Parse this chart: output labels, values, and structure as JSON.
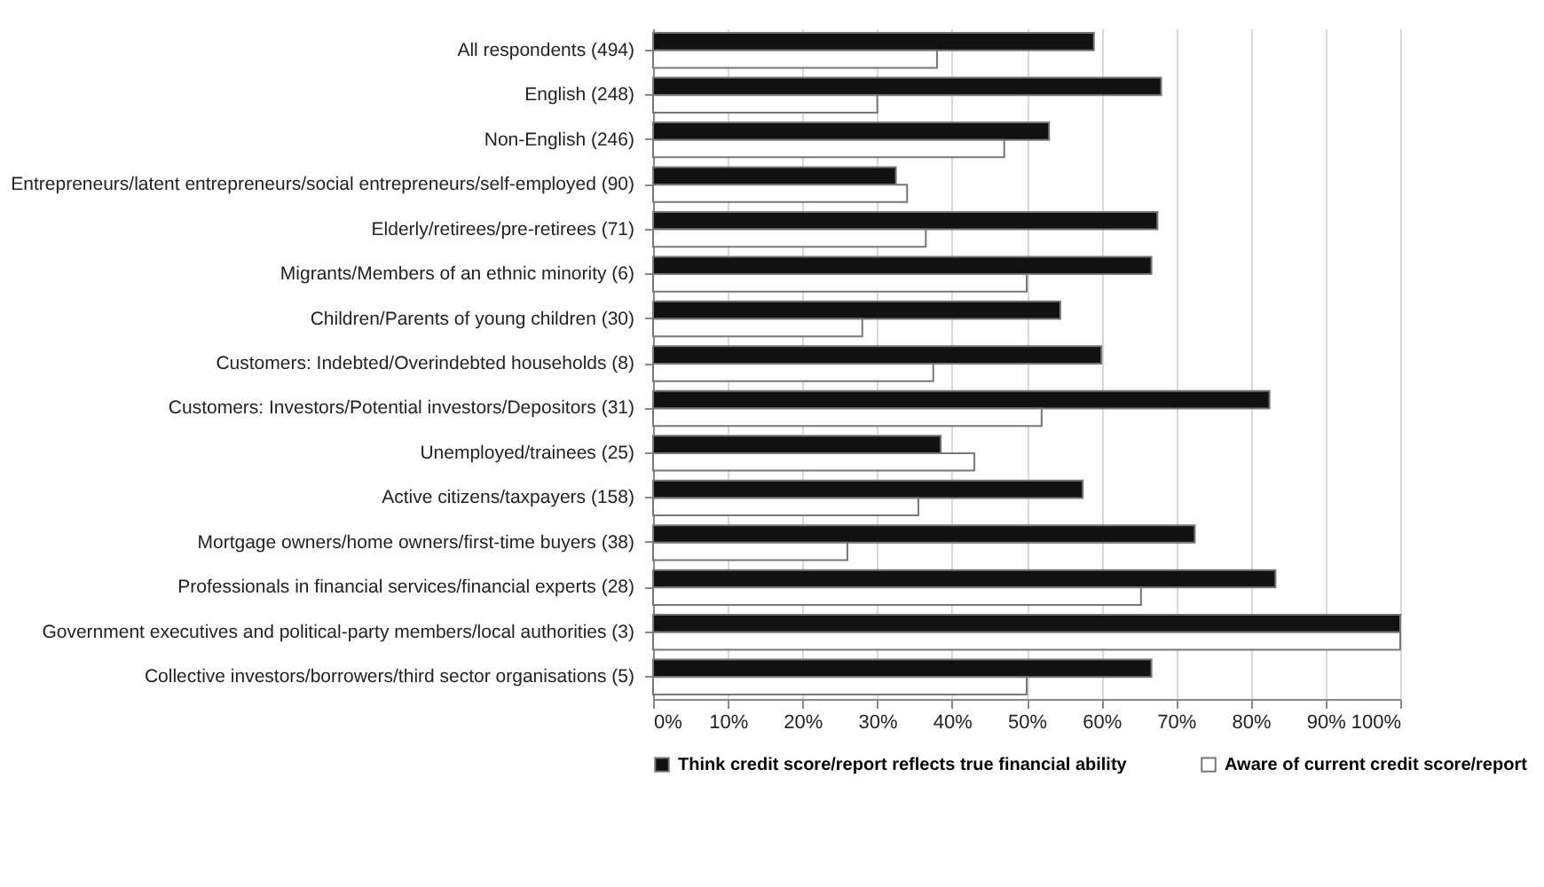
{
  "chart_data": {
    "type": "bar",
    "orientation": "horizontal",
    "categories": [
      "All respondents (494)",
      "English (248)",
      "Non-English (246)",
      "Entrepreneurs/latent entrepreneurs/social entrepreneurs/self-employed (90)",
      "Elderly/retirees/pre-retirees (71)",
      "Migrants/Members of an ethnic minority (6)",
      "Children/Parents of young children (30)",
      "Customers: Indebted/Overindebted households (8)",
      "Customers: Investors/Potential investors/Depositors (31)",
      "Unemployed/trainees (25)",
      "Active citizens/taxpayers (158)",
      "Mortgage owners/home owners/first-time buyers (38)",
      "Professionals in financial services/financial experts (28)",
      "Government executives and political-party members/local authorities (3)",
      "Collective investors/borrowers/third sector organisations (5)"
    ],
    "series": [
      {
        "name": "Think credit score/report reflects true financial ability",
        "color": "#111111",
        "values": [
          59,
          68,
          53,
          32.5,
          67.5,
          66.7,
          54.5,
          60,
          82.5,
          38.5,
          57.5,
          72.5,
          83.3,
          100,
          66.7
        ]
      },
      {
        "name": "Aware of current credit score/report",
        "color": "#ffffff",
        "values": [
          38,
          30,
          47,
          34,
          36.5,
          50,
          28,
          37.5,
          52,
          43,
          35.5,
          26,
          65.3,
          100,
          50
        ]
      }
    ],
    "xlim": [
      0,
      100
    ],
    "xticks": [
      {
        "value": 0,
        "label": "0%"
      },
      {
        "value": 10,
        "label": "10%"
      },
      {
        "value": 20,
        "label": "20%"
      },
      {
        "value": 30,
        "label": "30%"
      },
      {
        "value": 40,
        "label": "40%"
      },
      {
        "value": 50,
        "label": "50%"
      },
      {
        "value": 60,
        "label": "60%"
      },
      {
        "value": 70,
        "label": "70%"
      },
      {
        "value": 80,
        "label": "80%"
      },
      {
        "value": 90,
        "label": "90%"
      },
      {
        "value": 100,
        "label": "100%"
      }
    ],
    "grid": "x",
    "legend": "bottom"
  }
}
